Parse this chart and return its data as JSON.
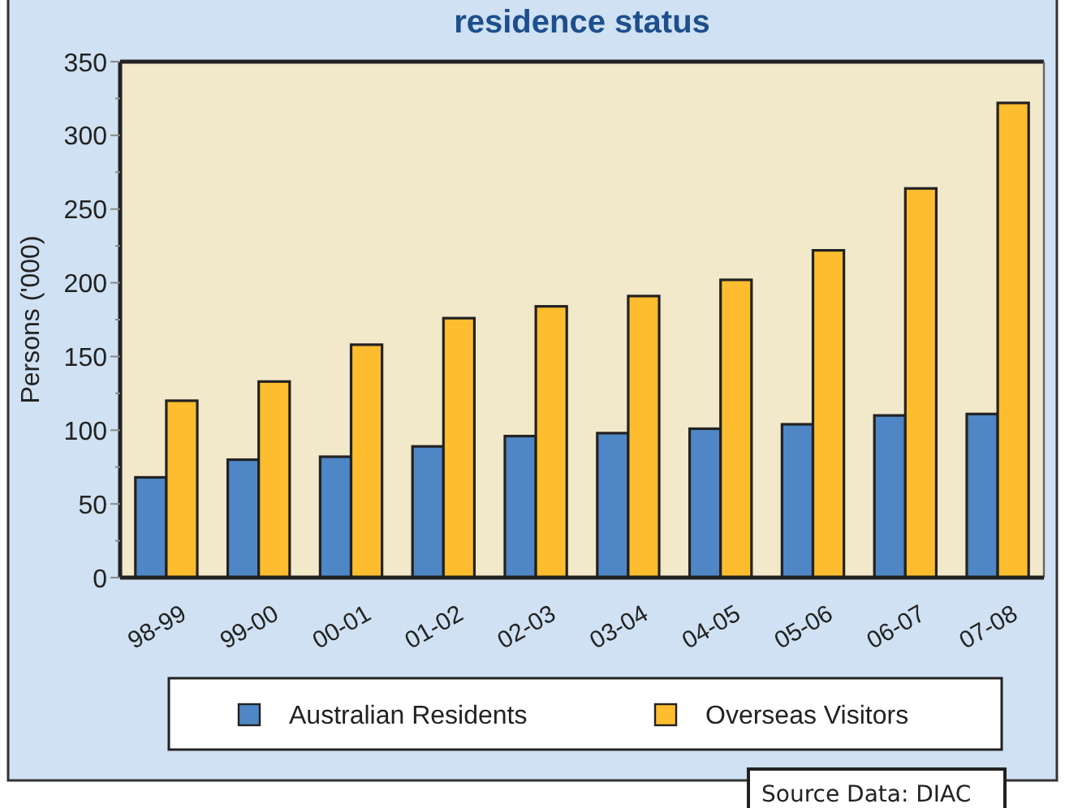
{
  "chart_data": {
    "type": "bar",
    "title": "residence status",
    "ylabel": "Persons ('000)",
    "categories": [
      "98-99",
      "99-00",
      "00-01",
      "01-02",
      "02-03",
      "03-04",
      "04-05",
      "05-06",
      "06-07",
      "07-08"
    ],
    "series": [
      {
        "name": "Australian Residents",
        "color": "#4f86c6",
        "values": [
          68,
          80,
          82,
          89,
          96,
          98,
          101,
          104,
          110,
          111
        ]
      },
      {
        "name": "Overseas Visitors",
        "color": "#fdbd2e",
        "values": [
          120,
          133,
          158,
          176,
          184,
          191,
          202,
          222,
          264,
          322
        ]
      }
    ],
    "ylim": [
      0,
      350
    ],
    "yticks": [
      0,
      {
        "value": 25,
        "label": null
      },
      50,
      {
        "value": 75,
        "label": null
      },
      100,
      {
        "value": 125,
        "label": null
      },
      150,
      {
        "value": 175,
        "label": null
      },
      200,
      {
        "value": 225,
        "label": null
      },
      250,
      {
        "value": 275,
        "label": null
      },
      300,
      {
        "value": 325,
        "label": null
      },
      350
    ],
    "legend": "bottom",
    "annotations": [
      "Source Data: DIAC"
    ]
  }
}
